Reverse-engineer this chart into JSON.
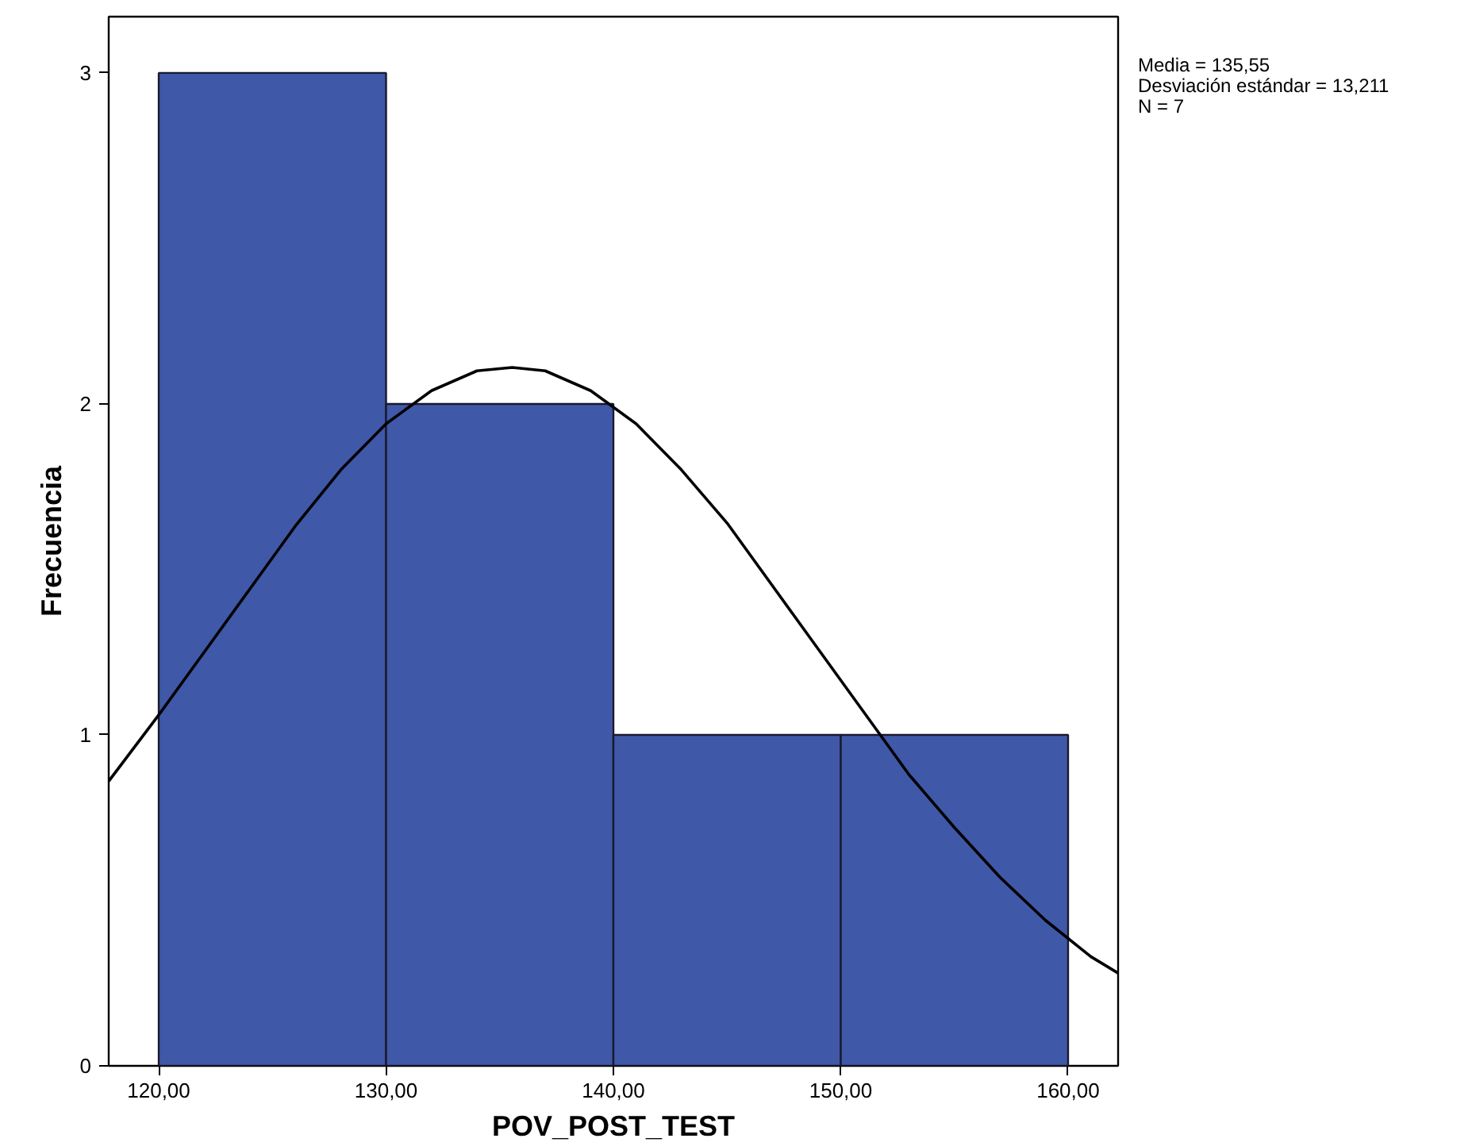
{
  "chart_data": {
    "type": "histogram",
    "xlabel": "POV_POST_TEST",
    "ylabel": "Frecuencia",
    "annotations": [
      "Media = 135,55",
      "Desviación estándar = 13,211",
      "N = 7"
    ],
    "bins": [
      120,
      130,
      140,
      150,
      160
    ],
    "series": [
      {
        "type": "histogram",
        "color": "#3f58a8",
        "values": [
          3,
          2,
          1,
          1
        ]
      },
      {
        "type": "line",
        "color": "#000000",
        "x": [
          117.8,
          120,
          122,
          124,
          126,
          128,
          130,
          132,
          134,
          135.55,
          137,
          139,
          141,
          143,
          145,
          147,
          149,
          151,
          153,
          155,
          157,
          159,
          161,
          162.2
        ],
        "values": [
          0.86,
          1.06,
          1.25,
          1.44,
          1.63,
          1.8,
          1.94,
          2.04,
          2.1,
          2.11,
          2.1,
          2.04,
          1.94,
          1.8,
          1.64,
          1.45,
          1.26,
          1.07,
          0.88,
          0.72,
          0.57,
          0.44,
          0.33,
          0.28
        ]
      }
    ],
    "xlim": [
      117.8,
      162.2
    ],
    "ylim": [
      0,
      3.17
    ],
    "xticks": [
      {
        "value": 120,
        "label": "120,00"
      },
      {
        "value": 130,
        "label": "130,00"
      },
      {
        "value": 140,
        "label": "140,00"
      },
      {
        "value": 150,
        "label": "150,00"
      },
      {
        "value": 160,
        "label": "160,00"
      }
    ],
    "yticks": [
      0,
      1,
      2,
      3
    ]
  }
}
